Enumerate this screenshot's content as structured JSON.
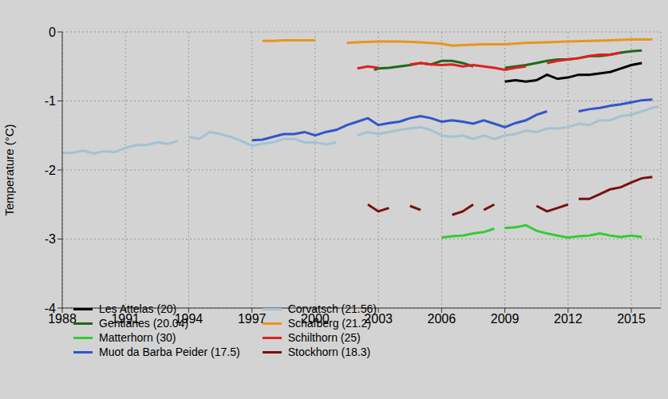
{
  "chart_data": {
    "type": "line",
    "y_label": "Temperature (°C)",
    "xlim": [
      1988,
      2016.4
    ],
    "xticks": [
      1988,
      1991,
      1994,
      1997,
      2000,
      2003,
      2006,
      2009,
      2012,
      2015
    ],
    "ylim": [
      -4,
      0
    ],
    "yticks": [
      -4,
      -3,
      -2,
      -1,
      0
    ],
    "grid": true,
    "legend": "lower left",
    "series": [
      {
        "name": "Les Attelas (20)",
        "color": "#000000",
        "x": [
          2009,
          2009.5,
          2010,
          2010.5,
          2011,
          2011.5,
          2012,
          2012.5,
          2013,
          2013.5,
          2014,
          2014.5,
          2015,
          2015.5
        ],
        "values": [
          -0.72,
          -0.7,
          -0.72,
          -0.7,
          -0.62,
          -0.68,
          -0.66,
          -0.62,
          -0.62,
          -0.6,
          -0.58,
          -0.53,
          -0.48,
          -0.45
        ]
      },
      {
        "name": "Gentianes (20.04)",
        "color": "#1a6b1a",
        "x": [
          2002.8,
          2003,
          2003.5,
          2004,
          2004.5,
          2005,
          2005.5,
          2006,
          2006.5,
          2007,
          2007.5,
          2008.3,
          2009,
          2009.5,
          2010,
          2010.5,
          2011,
          2011.5,
          2012,
          2012.5,
          2013,
          2013.5,
          2014,
          2014.5,
          2015,
          2015.5
        ],
        "values": [
          -0.55,
          -0.53,
          -0.52,
          -0.5,
          -0.48,
          -0.45,
          -0.47,
          -0.42,
          -0.42,
          -0.45,
          -0.5,
          null,
          -0.52,
          -0.5,
          -0.48,
          -0.45,
          -0.42,
          -0.4,
          -0.4,
          -0.38,
          -0.35,
          -0.35,
          -0.33,
          -0.3,
          -0.28,
          -0.27
        ]
      },
      {
        "name": "Matterhorn (30)",
        "color": "#33cc33",
        "x": [
          2006,
          2006.5,
          2007,
          2007.5,
          2008,
          2008.5,
          2008.75,
          2009,
          2009.5,
          2010,
          2010.5,
          2011,
          2011.5,
          2012,
          2012.5,
          2013,
          2013.5,
          2014,
          2014.5,
          2015,
          2015.5
        ],
        "values": [
          -2.98,
          -2.96,
          -2.95,
          -2.92,
          -2.9,
          -2.85,
          null,
          -2.84,
          -2.83,
          -2.8,
          -2.88,
          -2.92,
          -2.95,
          -2.98,
          -2.96,
          -2.95,
          -2.92,
          -2.95,
          -2.97,
          -2.95,
          -2.97
        ]
      },
      {
        "name": "Muot da Barba Peider (17.5)",
        "color": "#3355cc",
        "x": [
          1997,
          1997.5,
          1998,
          1998.5,
          1999,
          1999.5,
          2000,
          2000.5,
          2001,
          2001.5,
          2002,
          2002.5,
          2003,
          2003.5,
          2004,
          2004.5,
          2005,
          2005.5,
          2006,
          2006.5,
          2007,
          2007.5,
          2008,
          2008.5,
          2009,
          2009.5,
          2010,
          2010.5,
          2011,
          2011.75,
          2012.5,
          2013,
          2013.5,
          2014,
          2014.5,
          2015,
          2015.5,
          2016
        ],
        "values": [
          -1.57,
          -1.56,
          -1.52,
          -1.48,
          -1.48,
          -1.45,
          -1.5,
          -1.45,
          -1.42,
          -1.35,
          -1.3,
          -1.25,
          -1.35,
          -1.32,
          -1.3,
          -1.25,
          -1.22,
          -1.25,
          -1.3,
          -1.28,
          -1.3,
          -1.33,
          -1.28,
          -1.33,
          -1.38,
          -1.32,
          -1.28,
          -1.2,
          -1.15,
          null,
          -1.15,
          -1.12,
          -1.1,
          -1.07,
          -1.05,
          -1.02,
          -0.99,
          -0.98
        ]
      },
      {
        "name": "Corvatsch (21.56)",
        "color": "#a3c2d4",
        "x": [
          1988,
          1988.5,
          1989,
          1989.5,
          1990,
          1990.5,
          1991,
          1991.5,
          1992,
          1992.5,
          1993,
          1993.5,
          1993.75,
          1994,
          1994.5,
          1995,
          1995.5,
          1996,
          1996.5,
          1997,
          1997.5,
          1998,
          1998.5,
          1999,
          1999.5,
          2000,
          2000.5,
          2001,
          2001.5,
          2002,
          2002.5,
          2003,
          2003.5,
          2004,
          2004.5,
          2005,
          2005.5,
          2006,
          2006.5,
          2007,
          2007.5,
          2008,
          2008.5,
          2009,
          2009.5,
          2010,
          2010.5,
          2011,
          2011.5,
          2012,
          2012.5,
          2013,
          2013.5,
          2014,
          2014.5,
          2015,
          2015.5,
          2016,
          2016.3
        ],
        "values": [
          -1.75,
          -1.75,
          -1.72,
          -1.76,
          -1.73,
          -1.74,
          -1.68,
          -1.64,
          -1.64,
          -1.6,
          -1.62,
          -1.58,
          null,
          -1.52,
          -1.55,
          -1.45,
          -1.48,
          -1.52,
          -1.58,
          -1.65,
          -1.62,
          -1.6,
          -1.55,
          -1.55,
          -1.6,
          -1.6,
          -1.63,
          -1.6,
          null,
          -1.5,
          -1.45,
          -1.48,
          -1.45,
          -1.42,
          -1.4,
          -1.38,
          -1.42,
          -1.5,
          -1.52,
          -1.5,
          -1.55,
          -1.5,
          -1.55,
          -1.5,
          -1.48,
          -1.43,
          -1.45,
          -1.4,
          -1.4,
          -1.38,
          -1.33,
          -1.35,
          -1.28,
          -1.28,
          -1.22,
          -1.2,
          -1.15,
          -1.1,
          -1.08
        ]
      },
      {
        "name": "Schafberg (21.2)",
        "color": "#e8961e",
        "x": [
          1997.5,
          1998,
          1998.5,
          1999,
          1999.5,
          2000,
          2001,
          2001.5,
          2002,
          2003,
          2004,
          2005,
          2006,
          2006.5,
          2007,
          2008,
          2009,
          2010,
          2011,
          2012,
          2013,
          2014,
          2015,
          2016
        ],
        "values": [
          -0.13,
          -0.13,
          -0.12,
          -0.12,
          -0.12,
          -0.12,
          null,
          -0.16,
          -0.15,
          -0.14,
          -0.14,
          -0.15,
          -0.17,
          -0.2,
          -0.19,
          -0.18,
          -0.18,
          -0.16,
          -0.15,
          -0.14,
          -0.13,
          -0.12,
          -0.11,
          -0.11
        ]
      },
      {
        "name": "Schilthorn (25)",
        "color": "#e02020",
        "x": [
          2002,
          2002.5,
          2003,
          2003.75,
          2004.5,
          2005,
          2005.5,
          2006,
          2006.5,
          2007,
          2007.5,
          2008,
          2008.5,
          2009,
          2009.5,
          2010,
          2010.5,
          2011,
          2011.5,
          2012,
          2012.5,
          2013,
          2013.5,
          2014,
          2014.5
        ],
        "values": [
          -0.53,
          -0.5,
          -0.52,
          null,
          -0.47,
          -0.45,
          -0.47,
          -0.48,
          -0.47,
          -0.5,
          -0.48,
          -0.5,
          -0.52,
          -0.55,
          -0.52,
          -0.5,
          null,
          -0.45,
          -0.42,
          -0.4,
          -0.38,
          -0.35,
          -0.33,
          -0.33,
          -0.3
        ]
      },
      {
        "name": "Stockhorn (18.3)",
        "color": "#7a1010",
        "x": [
          2002.5,
          2003,
          2003.5,
          2004,
          2004.5,
          2005,
          2005.75,
          2006.5,
          2007,
          2007.5,
          2007.75,
          2008,
          2008.5,
          2009.5,
          2010.5,
          2011,
          2011.5,
          2012,
          2012.25,
          2012.5,
          2013,
          2013.5,
          2014,
          2014.5,
          2015,
          2015.5,
          2016
        ],
        "values": [
          -2.5,
          -2.6,
          -2.55,
          null,
          -2.52,
          -2.58,
          null,
          -2.65,
          -2.6,
          -2.5,
          null,
          -2.58,
          -2.5,
          null,
          -2.52,
          -2.6,
          -2.55,
          -2.5,
          null,
          -2.42,
          -2.42,
          -2.35,
          -2.28,
          -2.25,
          -2.18,
          -2.12,
          -2.1
        ]
      }
    ]
  }
}
